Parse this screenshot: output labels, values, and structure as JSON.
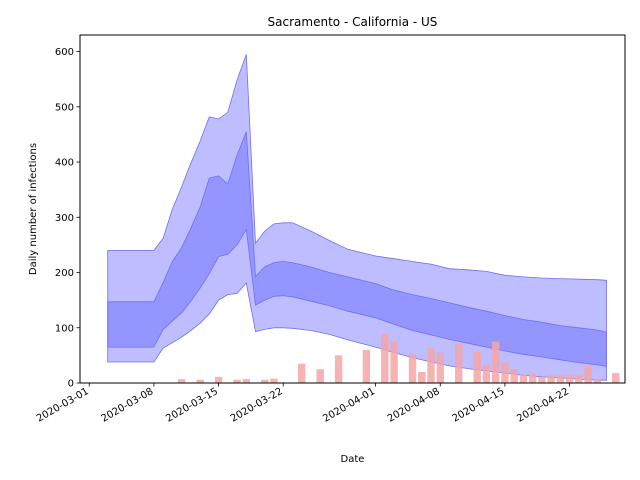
{
  "chart_data": {
    "type": "area",
    "title": "Sacramento - California - US",
    "xlabel": "Date",
    "ylabel": "Daily number of infections",
    "xlim": [
      "2020-02-29",
      "2020-04-28"
    ],
    "ylim": [
      0,
      630
    ],
    "x_ticks": [
      "2020-03-01",
      "2020-03-08",
      "2020-03-15",
      "2020-03-22",
      "2020-04-01",
      "2020-04-08",
      "2020-04-15",
      "2020-04-22"
    ],
    "y_ticks": [
      0,
      100,
      200,
      300,
      400,
      500,
      600
    ],
    "grid": false,
    "legend": "none",
    "colors": {
      "band_outer": "#bdbdff",
      "band_inner": "#9595ff",
      "band_edge": "#7070f0",
      "bars": "#f4a6a6",
      "bars_overlap": "#c873a8"
    },
    "bands": {
      "x": [
        "2020-03-03",
        "2020-03-08",
        "2020-03-09",
        "2020-03-10",
        "2020-03-11",
        "2020-03-12",
        "2020-03-13",
        "2020-03-14",
        "2020-03-15",
        "2020-03-16",
        "2020-03-17",
        "2020-03-18",
        "2020-03-19",
        "2020-03-20",
        "2020-03-21",
        "2020-03-22",
        "2020-03-23",
        "2020-03-25",
        "2020-03-27",
        "2020-03-29",
        "2020-04-01",
        "2020-04-03",
        "2020-04-05",
        "2020-04-07",
        "2020-04-09",
        "2020-04-11",
        "2020-04-13",
        "2020-04-15",
        "2020-04-17",
        "2020-04-19",
        "2020-04-21",
        "2020-04-23",
        "2020-04-25",
        "2020-04-26"
      ],
      "outer_upper": [
        240,
        240,
        262,
        315,
        355,
        398,
        438,
        482,
        478,
        490,
        548,
        595,
        253,
        275,
        288,
        290,
        290,
        275,
        258,
        242,
        230,
        225,
        220,
        215,
        207,
        205,
        202,
        195,
        192,
        190,
        189,
        188,
        187,
        186
      ],
      "inner_upper": [
        147,
        147,
        182,
        220,
        245,
        280,
        318,
        371,
        375,
        360,
        412,
        455,
        193,
        210,
        218,
        220,
        218,
        210,
        200,
        192,
        180,
        168,
        160,
        153,
        145,
        137,
        130,
        122,
        115,
        110,
        104,
        100,
        96,
        92
      ],
      "inner_lower": [
        65,
        65,
        97,
        112,
        127,
        148,
        172,
        198,
        229,
        233,
        250,
        278,
        141,
        150,
        157,
        158,
        156,
        148,
        140,
        130,
        118,
        106,
        95,
        87,
        79,
        72,
        65,
        58,
        52,
        47,
        42,
        37,
        33,
        30
      ],
      "outer_lower": [
        38,
        38,
        63,
        73,
        83,
        95,
        108,
        125,
        150,
        160,
        162,
        181,
        93,
        97,
        100,
        100,
        99,
        95,
        88,
        78,
        65,
        55,
        46,
        38,
        31,
        26,
        22,
        18,
        14,
        11,
        9,
        7,
        5,
        5
      ]
    },
    "bars": {
      "x": [
        "2020-03-11",
        "2020-03-13",
        "2020-03-15",
        "2020-03-17",
        "2020-03-18",
        "2020-03-20",
        "2020-03-21",
        "2020-03-24",
        "2020-03-26",
        "2020-03-28",
        "2020-03-31",
        "2020-04-02",
        "2020-04-03",
        "2020-04-05",
        "2020-04-06",
        "2020-04-07",
        "2020-04-08",
        "2020-04-10",
        "2020-04-12",
        "2020-04-13",
        "2020-04-14",
        "2020-04-15",
        "2020-04-16",
        "2020-04-17",
        "2020-04-18",
        "2020-04-19",
        "2020-04-20",
        "2020-04-21",
        "2020-04-22",
        "2020-04-23",
        "2020-04-24",
        "2020-04-25",
        "2020-04-27"
      ],
      "values": [
        7,
        6,
        11,
        6,
        7,
        6,
        8,
        35,
        25,
        50,
        60,
        90,
        75,
        52,
        20,
        63,
        55,
        72,
        56,
        33,
        75,
        37,
        25,
        15,
        17,
        11,
        14,
        14,
        15,
        15,
        32,
        6,
        18
      ]
    }
  }
}
